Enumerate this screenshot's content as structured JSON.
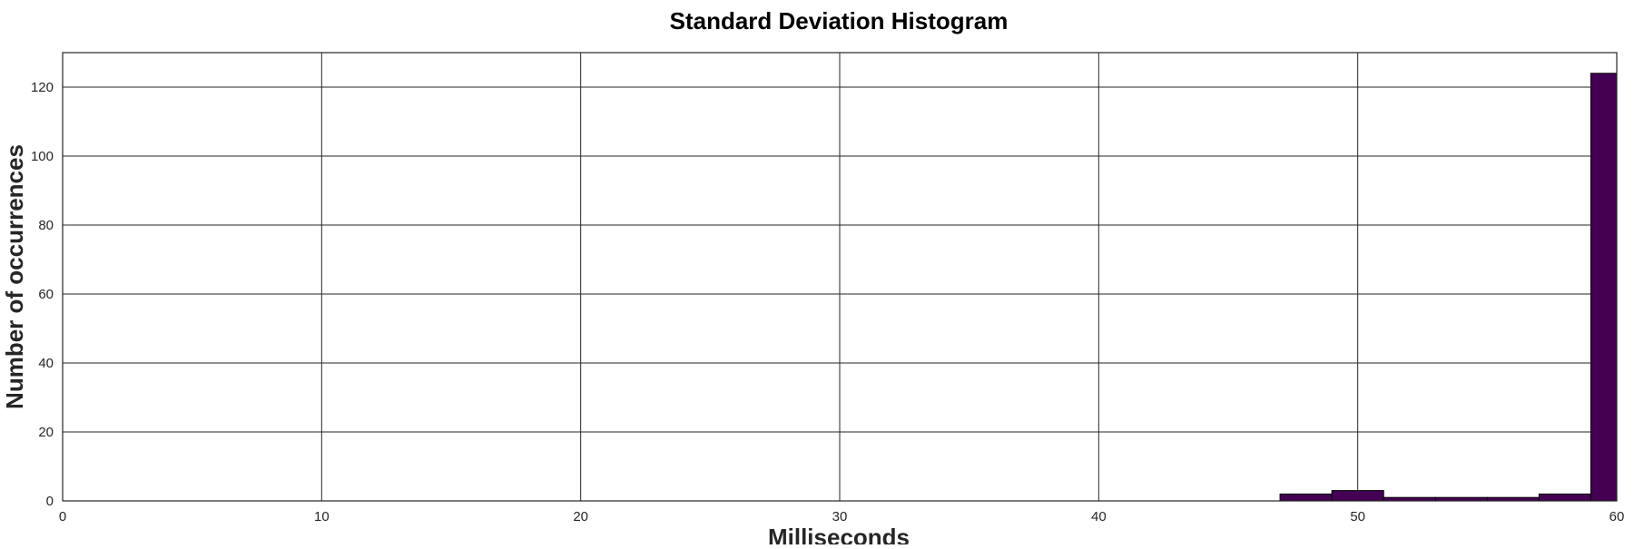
{
  "chart_data": {
    "type": "bar",
    "title": "Standard Deviation Histogram",
    "xlabel": "Milliseconds",
    "ylabel": "Number of occurrences",
    "xlim": [
      0,
      60
    ],
    "ylim": [
      0,
      130
    ],
    "x_ticks": [
      0,
      10,
      20,
      30,
      40,
      50,
      60
    ],
    "y_ticks": [
      0,
      20,
      40,
      60,
      80,
      100,
      120
    ],
    "grid": true,
    "bar_color": "#440154",
    "bins": [
      {
        "x0": 47,
        "x1": 49,
        "count": 2
      },
      {
        "x0": 49,
        "x1": 51,
        "count": 3
      },
      {
        "x0": 51,
        "x1": 53,
        "count": 1
      },
      {
        "x0": 53,
        "x1": 55,
        "count": 1
      },
      {
        "x0": 55,
        "x1": 57,
        "count": 1
      },
      {
        "x0": 57,
        "x1": 59,
        "count": 2
      },
      {
        "x0": 59,
        "x1": 60,
        "count": 124
      }
    ]
  }
}
